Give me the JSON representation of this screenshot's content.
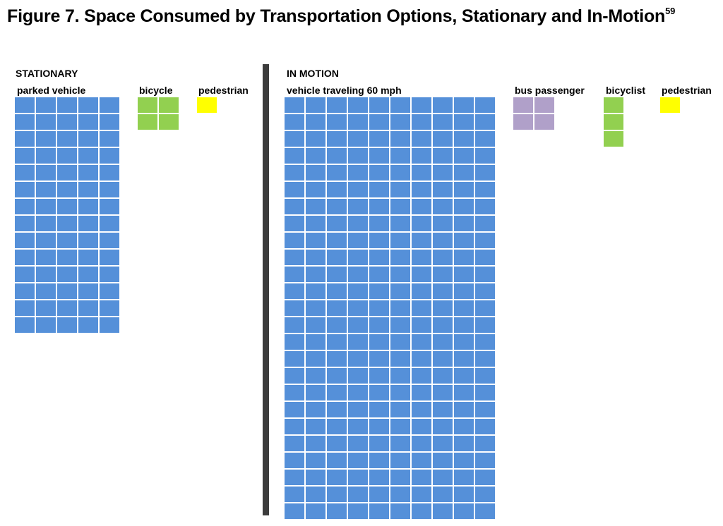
{
  "figure": {
    "title": "Figure 7. Space Consumed by Transportation Options, Stationary and In-Motion",
    "footnote": "59"
  },
  "colors": {
    "vehicle": "#5590d9",
    "bicycle": "#92d050",
    "pedestrian": "#ffff00",
    "bus_passenger": "#b0a0c9",
    "divider": "#3c3c3c"
  },
  "chart_data": {
    "type": "unit-grid",
    "unit": "one square",
    "sections": [
      {
        "name": "STATIONARY",
        "items": [
          {
            "label": "parked vehicle",
            "cols": 5,
            "rows": 14,
            "units": 70,
            "color": "#5590d9"
          },
          {
            "label": "bicycle",
            "cols": 2,
            "rows": 2,
            "units": 4,
            "color": "#92d050"
          },
          {
            "label": "pedestrian",
            "cols": 1,
            "rows": 1,
            "units": 1,
            "color": "#ffff00"
          }
        ]
      },
      {
        "name": "IN MOTION",
        "items": [
          {
            "label": "vehicle traveling 60 mph",
            "cols": 10,
            "rows": 25,
            "units": 250,
            "color": "#5590d9"
          },
          {
            "label": "bus passenger",
            "cols": 2,
            "rows": 2,
            "units": 4,
            "color": "#b0a0c9"
          },
          {
            "label": "bicyclist",
            "cols": 1,
            "rows": 3,
            "units": 3,
            "color": "#92d050"
          },
          {
            "label": "pedestrian",
            "cols": 1,
            "rows": 1,
            "units": 1,
            "color": "#ffff00"
          }
        ]
      }
    ]
  }
}
